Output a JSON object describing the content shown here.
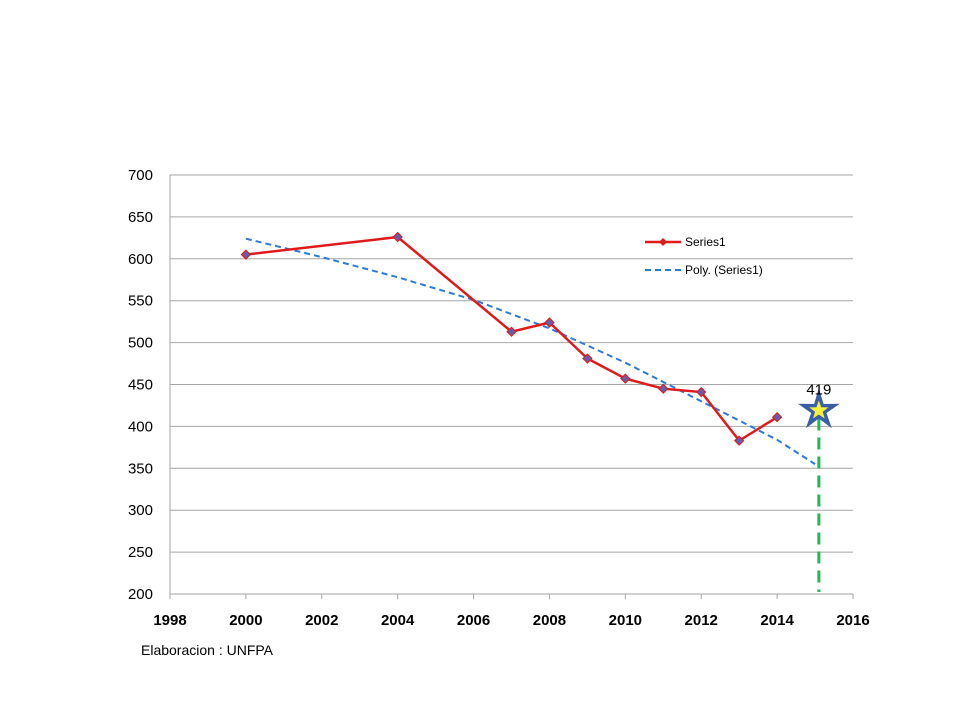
{
  "chart_data": {
    "type": "line",
    "x_range": [
      1998,
      2016
    ],
    "x_ticks": [
      1998,
      2000,
      2002,
      2004,
      2006,
      2008,
      2010,
      2012,
      2014,
      2016
    ],
    "y_range": [
      200,
      700
    ],
    "y_ticks": [
      200,
      250,
      300,
      350,
      400,
      450,
      500,
      550,
      600,
      650,
      700
    ],
    "grid": "horizontal",
    "legend_position": "top-right",
    "series": [
      {
        "name": "Series1",
        "color": "#e01a1a",
        "marker": "diamond",
        "marker_color": "#6b5aa6",
        "points": [
          {
            "x": 2000,
            "y": 605
          },
          {
            "x": 2004,
            "y": 626
          },
          {
            "x": 2007,
            "y": 513
          },
          {
            "x": 2008,
            "y": 524
          },
          {
            "x": 2009,
            "y": 481
          },
          {
            "x": 2010,
            "y": 457
          },
          {
            "x": 2011,
            "y": 445
          },
          {
            "x": 2012,
            "y": 441
          },
          {
            "x": 2013,
            "y": 383
          },
          {
            "x": 2014,
            "y": 411
          }
        ]
      },
      {
        "name": "Poly. (Series1)",
        "color": "#2b7bd6",
        "style": "dashed",
        "points": [
          {
            "x": 2000,
            "y": 624
          },
          {
            "x": 2002,
            "y": 602
          },
          {
            "x": 2004,
            "y": 578
          },
          {
            "x": 2006,
            "y": 551
          },
          {
            "x": 2008,
            "y": 517
          },
          {
            "x": 2010,
            "y": 476
          },
          {
            "x": 2012,
            "y": 430
          },
          {
            "x": 2014,
            "y": 384
          },
          {
            "x": 2015,
            "y": 355
          }
        ]
      }
    ],
    "target": {
      "x": 2015.1,
      "y": 419,
      "label": "419",
      "star_color": "#f5f03c",
      "star_outline": "#3a5fa8",
      "line_color": "#1db954"
    }
  },
  "source_note": "Elaboracion : UNFPA"
}
